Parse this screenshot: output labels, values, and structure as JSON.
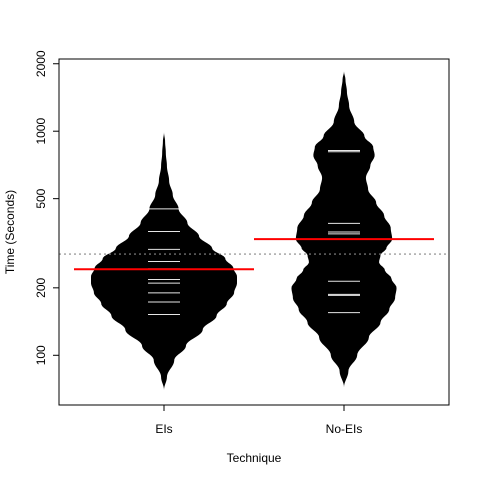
{
  "chart_data": {
    "type": "beanplot",
    "title": "",
    "xlabel": "Technique",
    "ylabel": "Time (Seconds)",
    "y_scale": "log",
    "ylim": [
      60,
      2100
    ],
    "yticks": [
      100,
      200,
      500,
      1000,
      2000
    ],
    "ytick_labels": [
      "100",
      "200",
      "500",
      "1000",
      "2000"
    ],
    "overall_mean": 283,
    "categories": [
      "EIs",
      "No-EIs"
    ],
    "beans": [
      {
        "category": "EIs",
        "mean": 242,
        "range": [
          70,
          990
        ],
        "observations": [
          152,
          173,
          190,
          210,
          218,
          243,
          262,
          297,
          357,
          450
        ],
        "density_profile": [
          [
            70,
            0.0
          ],
          [
            80,
            0.04
          ],
          [
            95,
            0.14
          ],
          [
            110,
            0.3
          ],
          [
            130,
            0.53
          ],
          [
            150,
            0.72
          ],
          [
            170,
            0.86
          ],
          [
            190,
            0.96
          ],
          [
            210,
            1.0
          ],
          [
            225,
            1.0
          ],
          [
            245,
            0.95
          ],
          [
            270,
            0.84
          ],
          [
            300,
            0.66
          ],
          [
            340,
            0.48
          ],
          [
            390,
            0.32
          ],
          [
            450,
            0.2
          ],
          [
            520,
            0.12
          ],
          [
            600,
            0.07
          ],
          [
            700,
            0.04
          ],
          [
            800,
            0.025
          ],
          [
            900,
            0.015
          ],
          [
            990,
            0.0
          ]
        ]
      },
      {
        "category": "No-EIs",
        "mean": 330,
        "range": [
          72,
          1850
        ],
        "observations": [
          155,
          185,
          187,
          214,
          348,
          355,
          388,
          810,
          820
        ],
        "density_profile": [
          [
            72,
            0.0
          ],
          [
            85,
            0.06
          ],
          [
            100,
            0.18
          ],
          [
            120,
            0.34
          ],
          [
            140,
            0.5
          ],
          [
            160,
            0.62
          ],
          [
            180,
            0.7
          ],
          [
            200,
            0.72
          ],
          [
            220,
            0.65
          ],
          [
            240,
            0.56
          ],
          [
            260,
            0.48
          ],
          [
            280,
            0.5
          ],
          [
            300,
            0.58
          ],
          [
            330,
            0.66
          ],
          [
            370,
            0.64
          ],
          [
            420,
            0.55
          ],
          [
            480,
            0.44
          ],
          [
            550,
            0.33
          ],
          [
            620,
            0.3
          ],
          [
            700,
            0.36
          ],
          [
            780,
            0.42
          ],
          [
            850,
            0.4
          ],
          [
            950,
            0.28
          ],
          [
            1100,
            0.14
          ],
          [
            1300,
            0.07
          ],
          [
            1500,
            0.04
          ],
          [
            1700,
            0.02
          ],
          [
            1850,
            0.0
          ]
        ]
      }
    ],
    "colors": {
      "bean_fill": "#000000",
      "observation_line": "#ffffff",
      "mean_line": "#ff0000",
      "overall_mean_line": "#888888"
    }
  }
}
